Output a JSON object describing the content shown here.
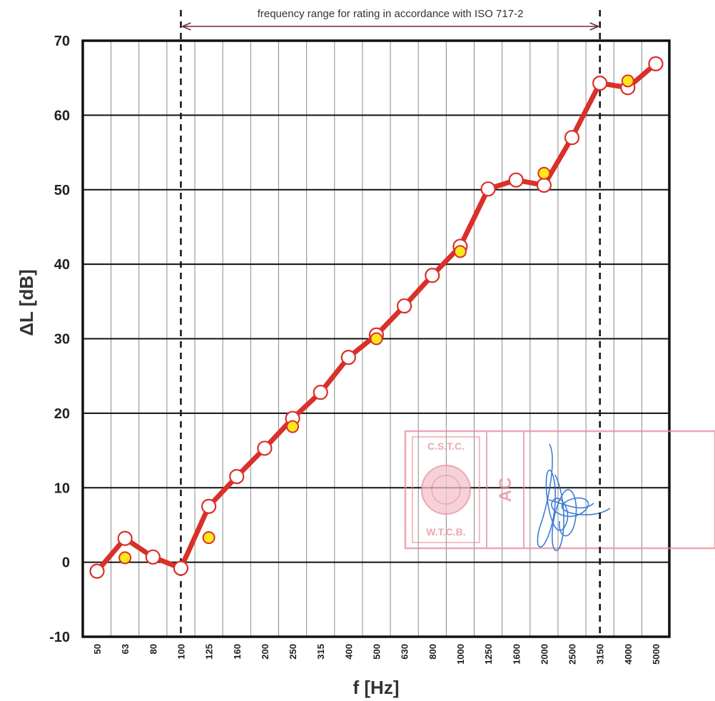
{
  "chart_data": {
    "type": "line",
    "xlabel": "f [Hz]",
    "ylabel": "ΔL [dB]",
    "ylim": [
      -10,
      70
    ],
    "yticks": [
      -10,
      0,
      10,
      20,
      30,
      40,
      50,
      60,
      70
    ],
    "grid": true,
    "categories": [
      "50",
      "63",
      "80",
      "100",
      "125",
      "160",
      "200",
      "250",
      "315",
      "400",
      "500",
      "630",
      "800",
      "1000",
      "1250",
      "1600",
      "2000",
      "2500",
      "3150",
      "4000",
      "5000"
    ],
    "series": [
      {
        "marker": "open-circle",
        "line": true,
        "values": [
          -1.2,
          3.2,
          0.7,
          -0.8,
          7.5,
          11.5,
          15.3,
          19.3,
          22.8,
          27.5,
          30.5,
          34.4,
          38.5,
          42.4,
          50.1,
          51.3,
          50.6,
          57.0,
          64.3,
          63.7,
          66.9
        ]
      },
      {
        "marker": "filled-circle",
        "line": false,
        "x": [
          "63",
          "125",
          "250",
          "500",
          "1000",
          "2000",
          "4000"
        ],
        "values": [
          0.6,
          3.3,
          18.2,
          30.0,
          41.7,
          52.2,
          64.6
        ]
      }
    ],
    "annotations": [
      {
        "text": "frequency range for rating in accordance with ISO 717-2",
        "from": "100",
        "to": "3150"
      }
    ]
  },
  "stamp": {
    "org_top": "C.S.T.C.",
    "org_bottom": "W.T.C.B.",
    "initials": "AC"
  },
  "colors": {
    "line": "#d9302a",
    "open_marker_fill": "#ffffff",
    "filled_marker_fill": "#ffe61a",
    "stamp": "#e88a9a",
    "signature": "#2a6fd0"
  }
}
